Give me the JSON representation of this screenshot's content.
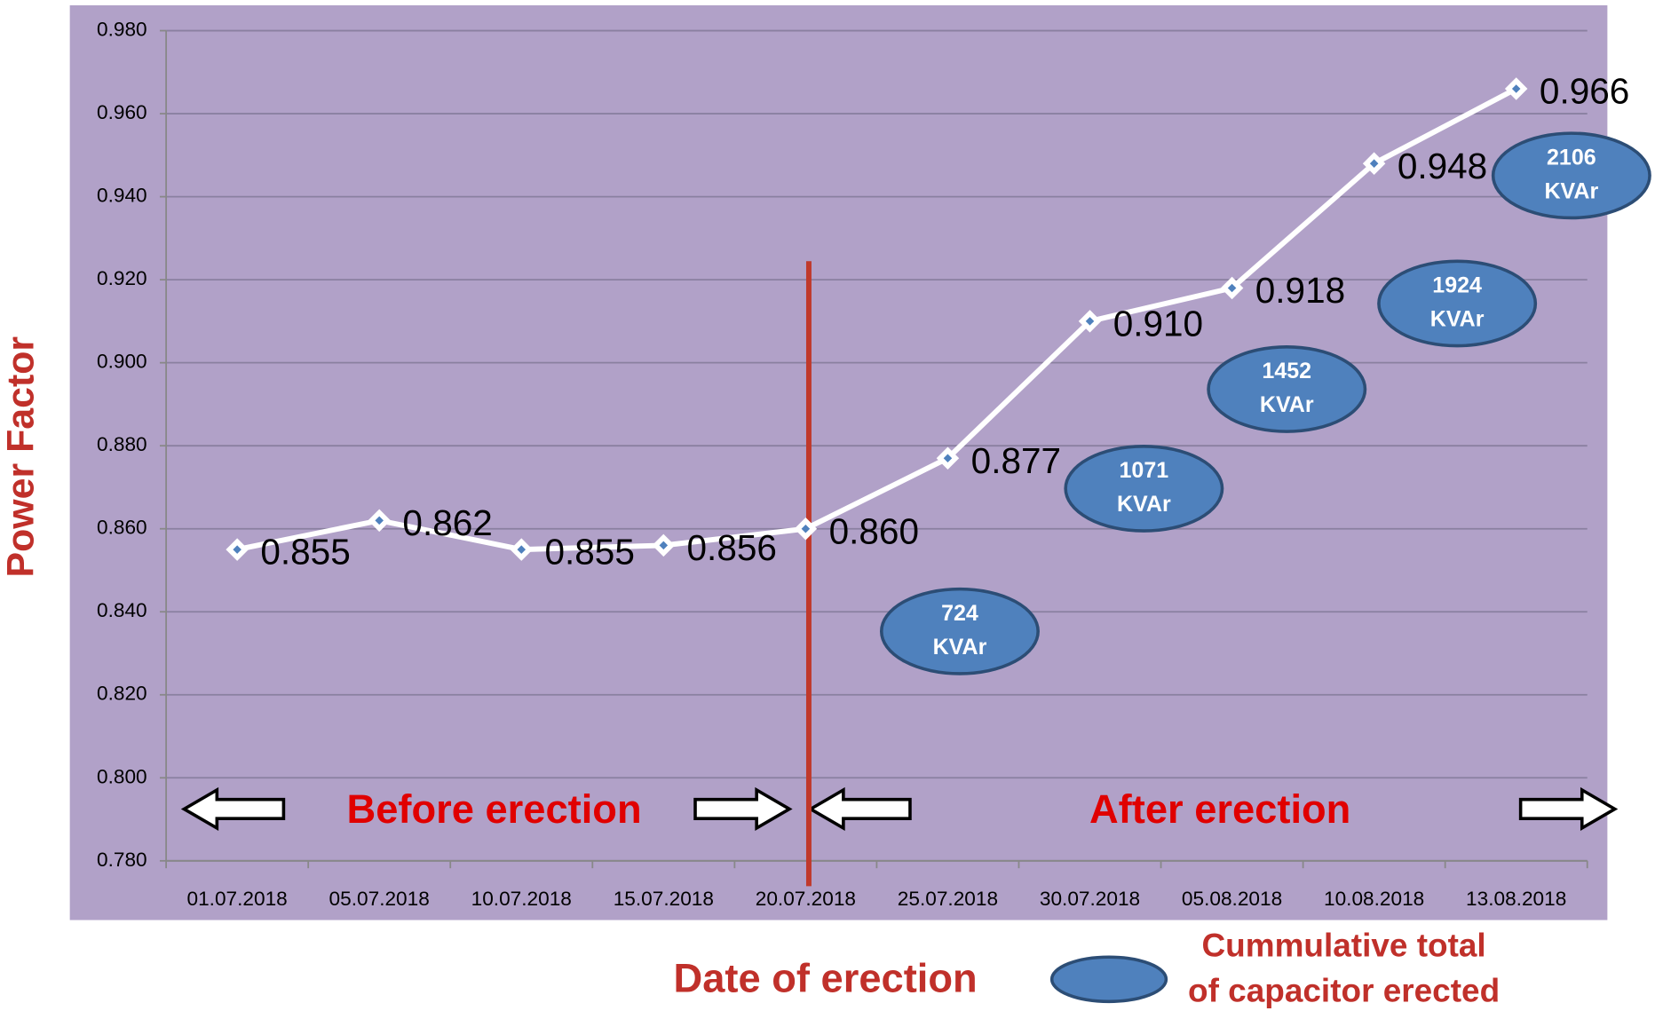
{
  "chart_data": {
    "type": "line",
    "x_label": "Date of erection",
    "y_label": "Power Factor",
    "categories": [
      "01.07.2018",
      "05.07.2018",
      "10.07.2018",
      "15.07.2018",
      "20.07.2018",
      "25.07.2018",
      "30.07.2018",
      "05.08.2018",
      "10.08.2018",
      "13.08.2018"
    ],
    "series": [
      {
        "name": "Power Factor",
        "color": "#ffffff",
        "values": [
          0.855,
          0.862,
          0.855,
          0.856,
          0.86,
          0.877,
          0.91,
          0.918,
          0.948,
          0.966
        ],
        "value_labels": [
          "0.855",
          "0.862",
          "0.855",
          "0.856",
          "0.860",
          "0.877",
          "0.910",
          "0.918",
          "0.948",
          "0.966"
        ]
      }
    ],
    "ylim": [
      0.78,
      0.98
    ],
    "yticks": [
      {
        "value": 0.78,
        "label": "0.780"
      },
      {
        "value": 0.8,
        "label": "0.800"
      },
      {
        "value": 0.82,
        "label": "0.820"
      },
      {
        "value": 0.84,
        "label": "0.840"
      },
      {
        "value": 0.86,
        "label": "0.860"
      },
      {
        "value": 0.88,
        "label": "0.880"
      },
      {
        "value": 0.9,
        "label": "0.900"
      },
      {
        "value": 0.92,
        "label": "0.920"
      },
      {
        "value": 0.94,
        "label": "0.940"
      },
      {
        "value": 0.96,
        "label": "0.960"
      },
      {
        "value": 0.98,
        "label": "0.980"
      }
    ],
    "grid": true,
    "annotations": [
      "Before  erection",
      "After  erection"
    ],
    "capacitors": [
      {
        "lines": [
          "724",
          "KVAr"
        ]
      },
      {
        "lines": [
          "1071",
          "KVAr"
        ]
      },
      {
        "lines": [
          "1452",
          "KVAr"
        ]
      },
      {
        "lines": [
          "1924",
          "KVAr"
        ]
      },
      {
        "lines": [
          "2106",
          "KVAr"
        ]
      }
    ],
    "legend": [
      "Cummulative total",
      "of capacitor erected"
    ]
  }
}
